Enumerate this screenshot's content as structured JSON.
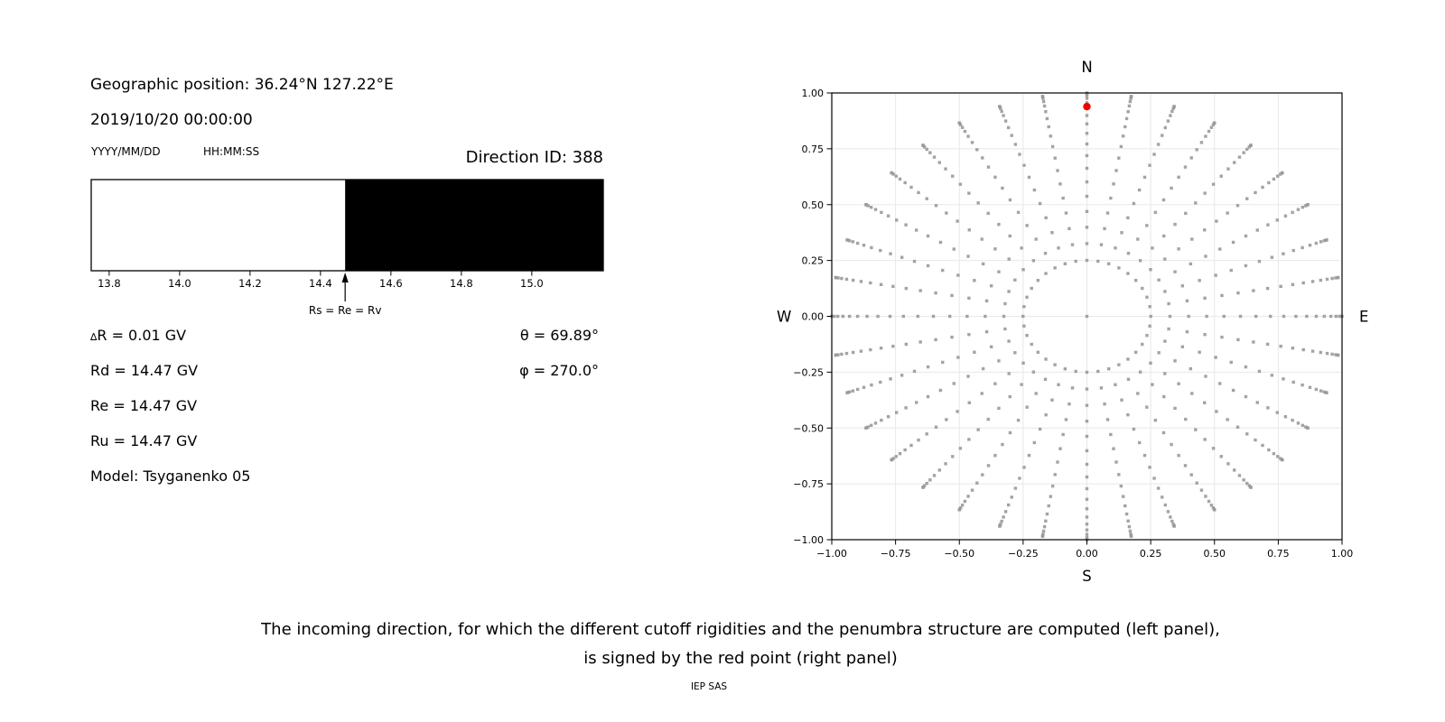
{
  "header": {
    "geo": "Geographic position: 36.24°N 127.22°E",
    "datetime": "2019/10/20 00:00:00",
    "date_format": "YYYY/MM/DD",
    "time_format": "HH:MM:SS",
    "direction_id": "Direction ID: 388"
  },
  "values": {
    "delta_sym": "∆",
    "delta_rest": "R = 0.01 GV",
    "rd": "Rd = 14.47 GV",
    "re": "Re = 14.47 GV",
    "ru": "Ru = 14.47 GV",
    "model": "Model: Tsyganenko 05",
    "theta": "θ = 69.89°",
    "phi": "φ = 270.0°"
  },
  "caption": {
    "line1": "The incoming direction, for which the different cutoff rigidities and the penumbra structure are computed (left panel),",
    "line2": "is signed by the red point (right panel)",
    "credit": "IEP SAS"
  },
  "chart_data": [
    {
      "id": "penumbra-strip",
      "type": "bar",
      "description": "Penumbra structure: white = allowed rigidities, black = forbidden rigidities",
      "xlabel_unit": "GV",
      "x_range": [
        13.749,
        15.203
      ],
      "x_ticks": [
        13.8,
        14.0,
        14.2,
        14.4,
        14.6,
        14.8,
        15.0
      ],
      "segments": [
        {
          "from": 13.749,
          "to": 14.47,
          "state": "allowed",
          "color": "#ffffff"
        },
        {
          "from": 14.47,
          "to": 15.203,
          "state": "forbidden",
          "color": "#000000"
        }
      ],
      "marker": {
        "value": 14.47,
        "label": "Rs = Re = Rv"
      },
      "frame_color": "#000000"
    },
    {
      "id": "direction-map",
      "type": "scatter",
      "description": "Grid of incoming directions; radius = sin(zenith angle), azimuth spokes every 10 degrees; red point marks the selected direction",
      "compass": {
        "top": "N",
        "bottom": "S",
        "left": "W",
        "right": "E"
      },
      "xlim": [
        -1.0,
        1.0
      ],
      "ylim": [
        -1.0,
        1.0
      ],
      "x_ticks": [
        -1.0,
        -0.75,
        -0.5,
        -0.25,
        0.0,
        0.25,
        0.5,
        0.75,
        1.0
      ],
      "y_ticks": [
        -1.0,
        -0.75,
        -0.5,
        -0.25,
        0.0,
        0.25,
        0.5,
        0.75,
        1.0
      ],
      "grid": true,
      "grid_color": "#e8e8e8",
      "azimuth_step_deg": 10,
      "zenith_angles_deg": [
        14.5,
        19,
        23.5,
        28,
        32.5,
        37,
        41.5,
        46,
        50.5,
        55,
        59.5,
        64,
        68.5,
        73,
        77.5,
        82,
        86.5,
        90
      ],
      "radius_rule": "sin(zenith)",
      "inner_ring_radius": 0.25,
      "has_center_point": true,
      "dot_color": "#999999",
      "red_point": {
        "x": 0.0,
        "y": 0.939,
        "theta_deg": 69.89,
        "phi_deg": 270.0,
        "color": "#f10000"
      }
    }
  ]
}
